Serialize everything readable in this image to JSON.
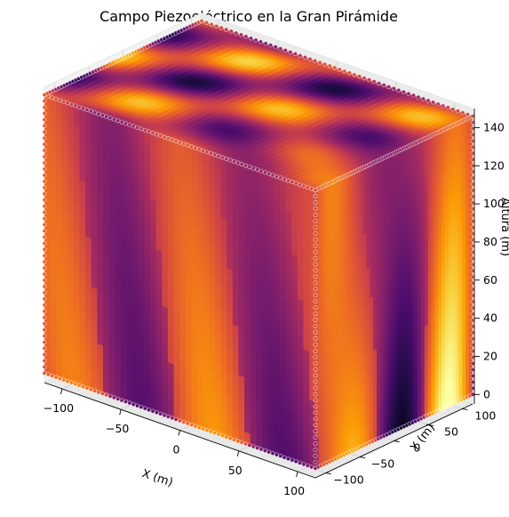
{
  "chart_data": {
    "type": "scatter",
    "projection": "3d",
    "title": "Campo Piezoeléctrico en la Gran Pirámide",
    "xlabel": "X (m)",
    "ylabel": "Y (m)",
    "zlabel": "Altura (m)",
    "xlim": [
      -115,
      115
    ],
    "ylim": [
      -115,
      115
    ],
    "zlim": [
      -5,
      150
    ],
    "x_ticks": [
      "−100",
      "−50",
      "0",
      "50",
      "100"
    ],
    "y_ticks": [
      "−100",
      "−50",
      "0",
      "50",
      "100"
    ],
    "z_ticks": [
      "0",
      "20",
      "40",
      "60",
      "80",
      "100",
      "120",
      "140"
    ],
    "x_tick_values": [
      -100,
      -50,
      0,
      50,
      100
    ],
    "y_tick_values": [
      -100,
      -50,
      0,
      50,
      100
    ],
    "z_tick_values": [
      0,
      20,
      40,
      60,
      80,
      100,
      120,
      140
    ],
    "volume": {
      "x_range": [
        -115,
        115
      ],
      "y_range": [
        -115,
        115
      ],
      "z_range": [
        0,
        146
      ]
    },
    "colormap": "inferno",
    "colormap_stops": [
      "#000004",
      "#1b0c41",
      "#4a0c6b",
      "#781c6d",
      "#a52c60",
      "#cf4446",
      "#ed6925",
      "#fb9b06",
      "#f7d13d",
      "#fcffa4"
    ],
    "grid": true,
    "pane_color": "#f2f2f2"
  }
}
